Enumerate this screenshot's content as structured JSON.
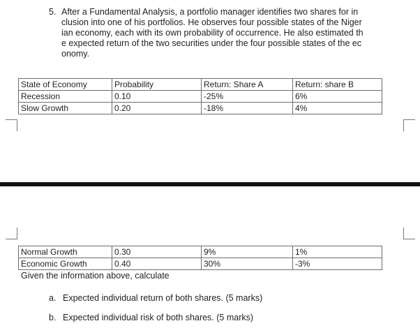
{
  "question": {
    "number": "5.",
    "lines": [
      "After a Fundamental Analysis, a portfolio manager identifies two shares for in",
      "clusion into one of his portfolios. He observes four possible states of the Niger",
      "ian economy, each with its own probability of occurrence. He also estimated th",
      "e expected return of the two securities under the four possible states of the ec",
      "onomy."
    ]
  },
  "table_top": {
    "headers": [
      "State of Economy",
      "Probability",
      "Return: Share A",
      "Return: share B"
    ],
    "rows": [
      [
        "Recession",
        "0.10",
        "-25%",
        "6%"
      ],
      [
        "Slow Growth",
        "0.20",
        "-18%",
        "4%"
      ]
    ]
  },
  "table_bottom": {
    "rows": [
      [
        "Normal Growth",
        "0.30",
        "9%",
        "1%"
      ],
      [
        "Economic Growth",
        "0.40",
        "30%",
        "-3%"
      ]
    ]
  },
  "given_text": "Given the information above, calculate",
  "tasks": [
    {
      "label": "a.",
      "text": "Expected individual return of both shares. (5 marks)"
    },
    {
      "label": "b.",
      "text": "Expected individual risk of both shares. (5 marks)"
    }
  ]
}
